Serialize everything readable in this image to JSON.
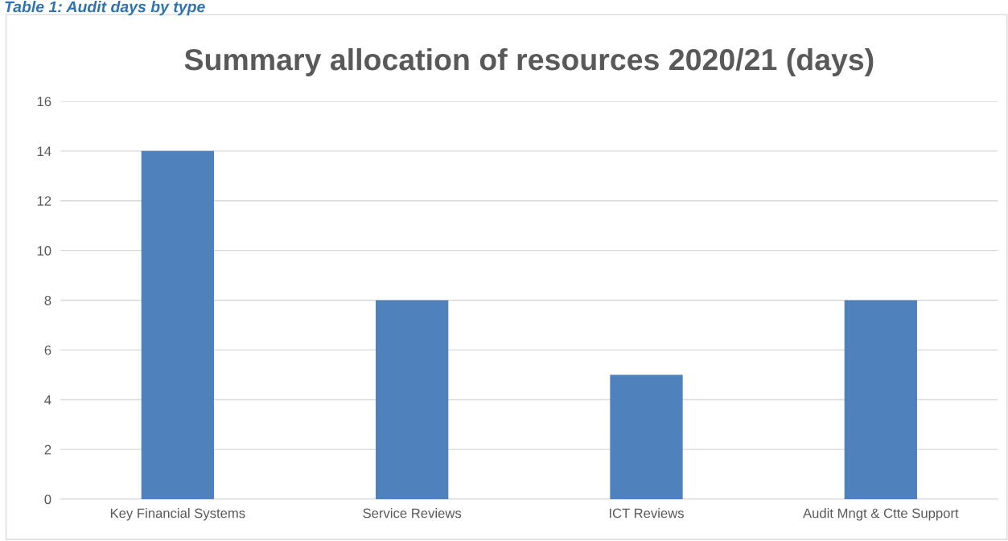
{
  "chart_data": {
    "type": "bar",
    "title": "Summary allocation of resources 2020/21 (days)",
    "annotations": [
      "Table 1: Audit days by type"
    ],
    "categories": [
      "Key Financial Systems",
      "Service Reviews",
      "ICT Reviews",
      "Audit Mngt & Ctte Support"
    ],
    "values": [
      14,
      8,
      5,
      8
    ],
    "color": "#4f81bd",
    "ylim": [
      0,
      16
    ],
    "yticks": [
      0,
      2,
      4,
      6,
      8,
      10,
      12,
      14,
      16
    ],
    "grid": "y",
    "legend": false
  }
}
